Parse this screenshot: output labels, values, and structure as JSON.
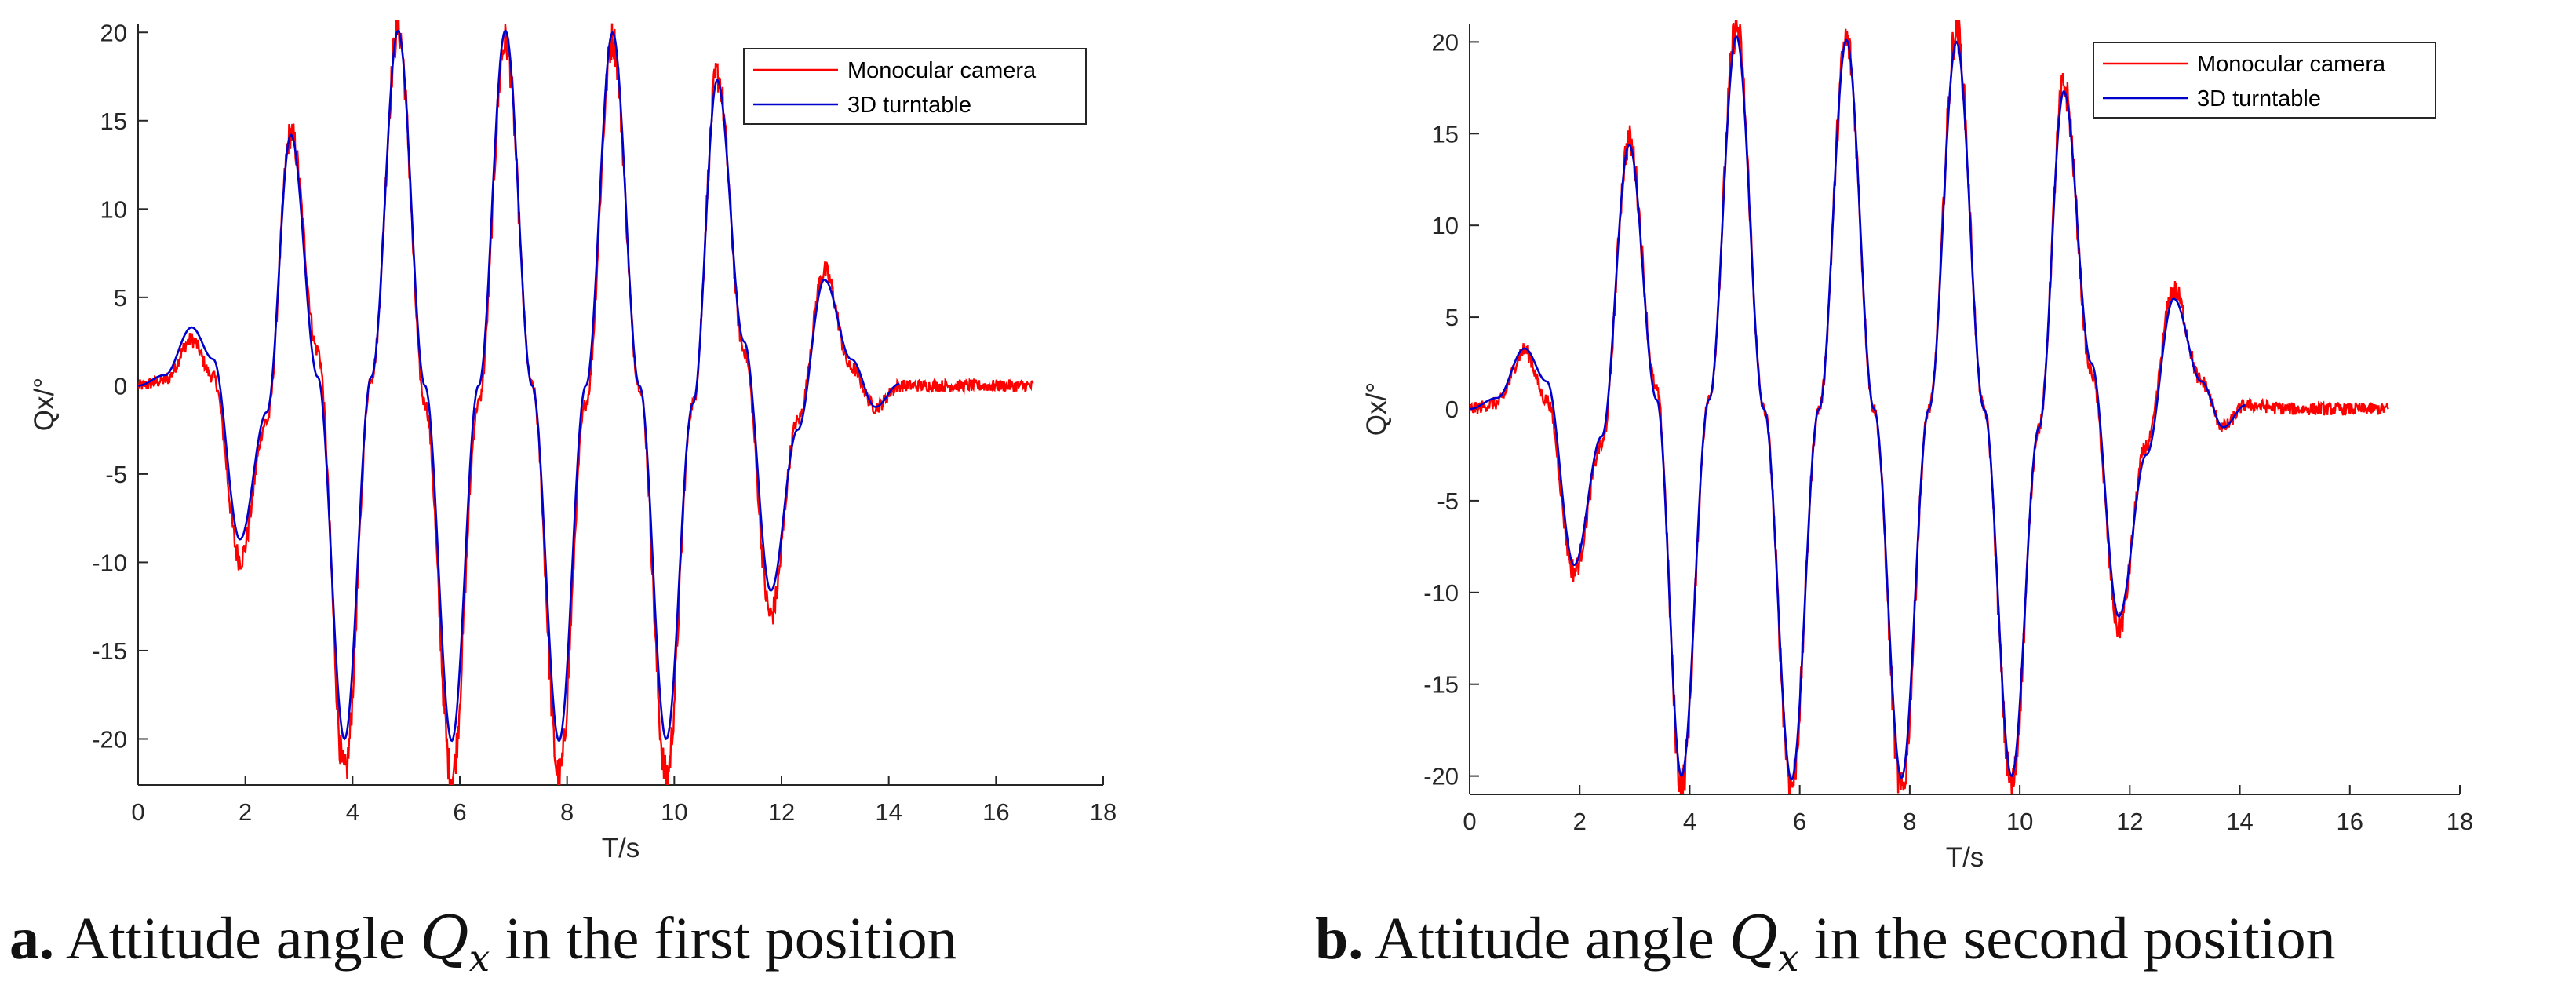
{
  "captions": [
    {
      "letter": "a.",
      "before": "Attitude angle",
      "symbol": "Q",
      "subscript": "x",
      "after": "in the first position"
    },
    {
      "letter": "b.",
      "before": "Attitude angle",
      "symbol": "Q",
      "subscript": "x",
      "after": "in the second position"
    }
  ],
  "colors": {
    "monocular": "#ff0000",
    "turntable": "#0000cc",
    "axis": "#262626"
  },
  "chart_data": [
    {
      "type": "line",
      "title": "",
      "xlabel": "T/s",
      "ylabel": "Qx/°",
      "xlim": [
        0,
        18
      ],
      "ylim": [
        -22.6,
        20.5
      ],
      "xticks": [
        0,
        2,
        4,
        6,
        8,
        10,
        12,
        14,
        16,
        18
      ],
      "yticks": [
        -20,
        -15,
        -10,
        -5,
        0,
        5,
        10,
        15,
        20
      ],
      "legend_position": "top-right",
      "series": [
        {
          "name": "Monocular camera",
          "color": "#ff0000",
          "x": [
            0,
            0.5,
            1.0,
            1.4,
            1.9,
            2.4,
            2.85,
            3.35,
            3.85,
            4.35,
            4.85,
            5.35,
            5.85,
            6.35,
            6.85,
            7.35,
            7.85,
            8.35,
            8.85,
            9.35,
            9.85,
            10.35,
            10.8,
            11.3,
            11.8,
            12.3,
            12.8,
            13.3,
            13.75,
            14.2,
            15.0,
            16.0,
            16.7
          ],
          "y": [
            0,
            0.3,
            2.6,
            0.5,
            -9.8,
            -2.0,
            14.3,
            2.0,
            -22.0,
            0.5,
            20.2,
            -1.0,
            -22.1,
            -1.0,
            19.5,
            0.0,
            -22.1,
            -1.0,
            19.6,
            0.0,
            -22.1,
            -1.0,
            17.6,
            2.0,
            -13.0,
            -2.0,
            6.5,
            1.0,
            -1.2,
            0,
            0,
            0,
            0
          ]
        },
        {
          "name": "3D turntable",
          "color": "#0000cc",
          "x": [
            0,
            0.5,
            1.0,
            1.4,
            1.9,
            2.4,
            2.85,
            3.35,
            3.85,
            4.35,
            4.85,
            5.35,
            5.85,
            6.35,
            6.85,
            7.35,
            7.85,
            8.35,
            8.85,
            9.35,
            9.85,
            10.35,
            10.8,
            11.3,
            11.8,
            12.3,
            12.8,
            13.3,
            13.75,
            14.2
          ],
          "y": [
            0,
            0.6,
            3.3,
            1.5,
            -8.7,
            -1.5,
            14.2,
            0.5,
            -20.0,
            0.5,
            20.1,
            0.0,
            -20.1,
            0.0,
            20.1,
            0.0,
            -20.1,
            0.0,
            20.0,
            0.0,
            -20.0,
            -1.0,
            17.3,
            2.5,
            -11.6,
            -2.5,
            6.0,
            1.5,
            -1.2,
            0.1
          ]
        }
      ]
    },
    {
      "type": "line",
      "title": "",
      "xlabel": "T/s",
      "ylabel": "Qx/°",
      "xlim": [
        0,
        18
      ],
      "ylim": [
        -21,
        21
      ],
      "xticks": [
        0,
        2,
        4,
        6,
        8,
        10,
        12,
        14,
        16,
        18
      ],
      "yticks": [
        -20,
        -15,
        -10,
        -5,
        0,
        5,
        10,
        15,
        20
      ],
      "legend_position": "top-right",
      "series": [
        {
          "name": "Monocular camera",
          "color": "#ff0000",
          "x": [
            0,
            0.5,
            1.0,
            1.4,
            1.9,
            2.4,
            2.9,
            3.4,
            3.85,
            4.35,
            4.85,
            5.35,
            5.85,
            6.35,
            6.85,
            7.35,
            7.85,
            8.35,
            8.85,
            9.35,
            9.85,
            10.35,
            10.8,
            11.3,
            11.8,
            12.3,
            12.8,
            13.3,
            13.7,
            14.1,
            15.0,
            16.0,
            16.7
          ],
          "y": [
            0,
            0.3,
            3.2,
            0.5,
            -8.8,
            -2.0,
            14.6,
            1.0,
            -20.5,
            0.5,
            20.8,
            0.0,
            -20.5,
            0.0,
            20.1,
            0.0,
            -20.9,
            0.0,
            20.6,
            0.0,
            -20.6,
            -1.0,
            17.6,
            2.0,
            -11.9,
            -2.0,
            6.5,
            1.5,
            -1.0,
            0.2,
            0,
            0,
            0
          ]
        },
        {
          "name": "3D turntable",
          "color": "#0000cc",
          "x": [
            0,
            0.5,
            1.0,
            1.4,
            1.9,
            2.4,
            2.9,
            3.4,
            3.85,
            4.35,
            4.85,
            5.35,
            5.85,
            6.35,
            6.85,
            7.35,
            7.85,
            8.35,
            8.85,
            9.35,
            9.85,
            10.35,
            10.8,
            11.3,
            11.8,
            12.3,
            12.8,
            13.3,
            13.7,
            14.1
          ],
          "y": [
            0,
            0.6,
            3.3,
            1.5,
            -8.5,
            -1.5,
            14.4,
            0.5,
            -20.0,
            0.5,
            20.3,
            0.0,
            -20.2,
            0.0,
            20.1,
            0.0,
            -20.1,
            0.0,
            20.0,
            0.0,
            -20.0,
            -1.0,
            17.3,
            2.5,
            -11.3,
            -2.5,
            6.0,
            1.5,
            -1.0,
            0.2
          ]
        }
      ]
    }
  ]
}
